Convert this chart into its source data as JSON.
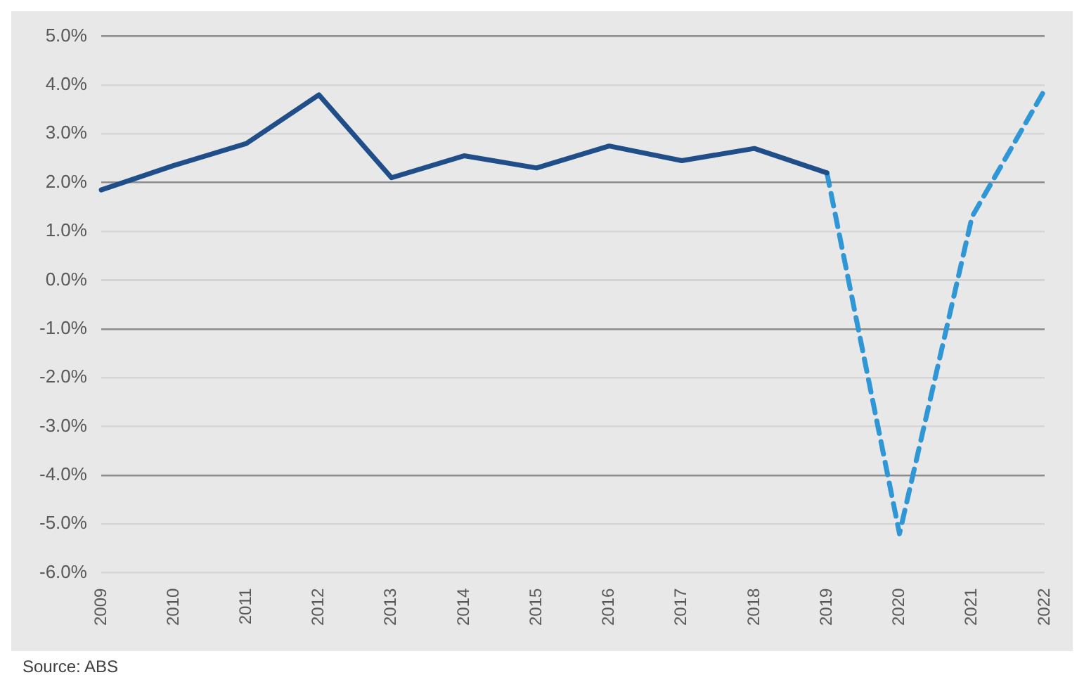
{
  "chart_data": {
    "type": "line",
    "categories": [
      "2009",
      "2010",
      "2011",
      "2012",
      "2013",
      "2014",
      "2015",
      "2016",
      "2017",
      "2018",
      "2019",
      "2020",
      "2021",
      "2022"
    ],
    "series": [
      {
        "color": "#1f4e89",
        "line_style": "solid",
        "values": [
          1.85,
          2.35,
          2.8,
          3.8,
          2.1,
          2.55,
          2.3,
          2.75,
          2.45,
          2.7,
          2.2,
          null,
          null,
          null
        ]
      },
      {
        "color": "#2f97d5",
        "line_style": "dashed",
        "values": [
          null,
          null,
          null,
          null,
          null,
          null,
          null,
          null,
          null,
          null,
          2.2,
          -5.2,
          1.3,
          3.9
        ]
      }
    ],
    "ylim": [
      -6,
      5
    ],
    "yticks": [
      {
        "value": 5,
        "label": "5.0%"
      },
      {
        "value": 4,
        "label": "4.0%"
      },
      {
        "value": 3,
        "label": "3.0%"
      },
      {
        "value": 2,
        "label": "2.0%"
      },
      {
        "value": 1,
        "label": "1.0%"
      },
      {
        "value": 0,
        "label": "0.0%"
      },
      {
        "value": -1,
        "label": "-1.0%"
      },
      {
        "value": -2,
        "label": "-2.0%"
      },
      {
        "value": -3,
        "label": "-3.0%"
      },
      {
        "value": -4,
        "label": "-4.0%"
      },
      {
        "value": -5,
        "label": "-5.0%"
      },
      {
        "value": -6,
        "label": "-6.0%"
      }
    ],
    "grid": "y",
    "legend": false,
    "marker": "none",
    "annotations": [
      "Source: ABS"
    ]
  }
}
